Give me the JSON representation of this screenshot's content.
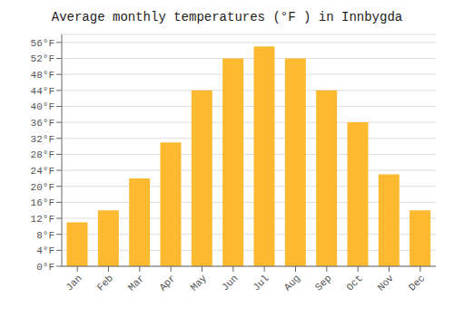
{
  "chart_data": {
    "type": "bar",
    "title": "Average monthly temperatures (°F ) in Innbygda",
    "categories": [
      "Jan",
      "Feb",
      "Mar",
      "Apr",
      "May",
      "Jun",
      "Jul",
      "Aug",
      "Sep",
      "Oct",
      "Nov",
      "Dec"
    ],
    "values": [
      11,
      14,
      22,
      31,
      44,
      52,
      55,
      52,
      44,
      36,
      23,
      14
    ],
    "color": "#FDB930",
    "ylim": [
      0,
      58
    ],
    "yticks": [
      {
        "value": 0,
        "label": "0°F"
      },
      {
        "value": 4,
        "label": "4°F"
      },
      {
        "value": 8,
        "label": "8°F"
      },
      {
        "value": 12,
        "label": "12°F"
      },
      {
        "value": 16,
        "label": "16°F"
      },
      {
        "value": 20,
        "label": "20°F"
      },
      {
        "value": 24,
        "label": "24°F"
      },
      {
        "value": 28,
        "label": "28°F"
      },
      {
        "value": 32,
        "label": "32°F"
      },
      {
        "value": 36,
        "label": "36°F"
      },
      {
        "value": 40,
        "label": "40°F"
      },
      {
        "value": 44,
        "label": "44°F"
      },
      {
        "value": 48,
        "label": "48°F"
      },
      {
        "value": 52,
        "label": "52°F"
      },
      {
        "value": 56,
        "label": "56°F"
      }
    ],
    "grid": true
  }
}
